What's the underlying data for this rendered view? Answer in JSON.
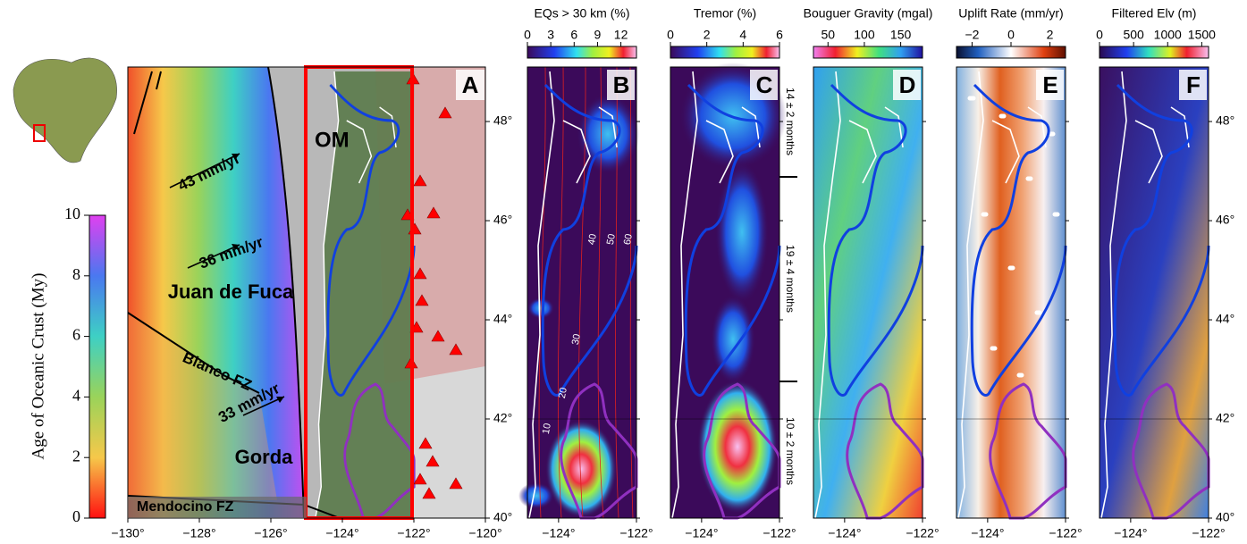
{
  "age_colorbar": {
    "title": "Age of Oceanic Crust (My)",
    "lim": [
      0,
      10
    ],
    "ticks": [
      0,
      2,
      4,
      6,
      8,
      10
    ]
  },
  "panel_a": {
    "label": "A",
    "xlim": [
      -130,
      -120
    ],
    "ylim": [
      40,
      49.1
    ],
    "xticks": [
      {
        "value": -130,
        "label": "−130°"
      },
      {
        "value": -128,
        "label": "−128°"
      },
      {
        "value": -126,
        "label": "−126°"
      },
      {
        "value": -124,
        "label": "−124°"
      },
      {
        "value": -122,
        "label": "−122°"
      },
      {
        "value": -120,
        "label": "−120°"
      }
    ],
    "yticks": [
      {
        "value": 40,
        "label": "40°"
      },
      {
        "value": 42,
        "label": "42°"
      },
      {
        "value": 44,
        "label": "44°"
      },
      {
        "value": 46,
        "label": "46°"
      },
      {
        "value": 48,
        "label": "48°"
      }
    ],
    "annotations": [
      "43 mm/yr",
      "36 mm/yr",
      "33 mm/yr",
      "OM",
      "Juan de Fuca",
      "Blanco FZ",
      "Gorda",
      "Mendocino FZ"
    ]
  },
  "panels": [
    {
      "label": "B",
      "colorbar_title": "EQs > 30 km (%)",
      "clim": [
        0,
        14
      ],
      "cticks": [
        0,
        3,
        6,
        9,
        12
      ]
    },
    {
      "label": "C",
      "colorbar_title": "Tremor (%)",
      "clim": [
        0,
        6
      ],
      "cticks": [
        0,
        2,
        4,
        6
      ]
    },
    {
      "label": "D",
      "colorbar_title": "Bouguer Gravity (mgal)",
      "clim": [
        30,
        180
      ],
      "cticks": [
        50,
        100,
        150
      ]
    },
    {
      "label": "E",
      "colorbar_title": "Uplift Rate (mm/yr)",
      "clim": [
        -2.8,
        2.8
      ],
      "cticks": [
        {
          "value": -2,
          "label": "−2"
        },
        0,
        2
      ]
    },
    {
      "label": "F",
      "colorbar_title": "Filtered Elv (m)",
      "clim": [
        0,
        1600
      ],
      "cticks": [
        0,
        500,
        1000,
        1500
      ]
    }
  ],
  "small_xlim": [
    -124.8,
    -122
  ],
  "small_xticks": [
    {
      "value": -124,
      "label": "−124°"
    },
    {
      "value": -122,
      "label": "−122°"
    }
  ],
  "contour_labels": [
    10,
    20,
    30,
    40,
    50,
    60
  ],
  "recurrence": [
    "14 ± 2 months",
    "19 ± 4 months",
    "10 ± 2 months"
  ]
}
